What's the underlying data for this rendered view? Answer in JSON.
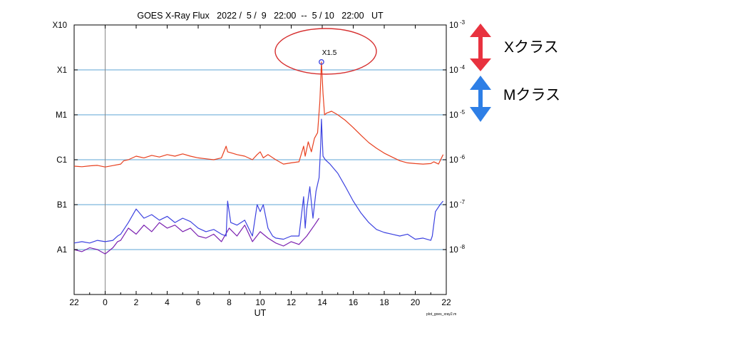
{
  "chart_data": {
    "type": "line",
    "title": "GOES X-Ray Flux   2022 /  5 /  9   22:00  --  5 / 10   22:00   UT",
    "xlabel": "UT",
    "x_ticks": [
      "22",
      "0",
      "2",
      "4",
      "6",
      "8",
      "10",
      "12",
      "14",
      "16",
      "18",
      "20",
      "22"
    ],
    "x_range_hours": [
      -2,
      22
    ],
    "y_scale": "log",
    "y_range": [
      1e-09,
      0.001
    ],
    "y_ticks_left": [
      "A1",
      "B1",
      "C1",
      "M1",
      "X1",
      "X10"
    ],
    "y_ticks_right": [
      "10",
      "10",
      "10",
      "10",
      "10",
      "10"
    ],
    "y_ticks_right_exp": [
      "-8",
      "-7",
      "-6",
      "-5",
      "-4",
      "-3"
    ],
    "grid": "horizontal at class levels",
    "series": [
      {
        "name": "",
        "color": "#e8401f",
        "x": [
          -2,
          -1.5,
          -1,
          -0.5,
          0,
          0.5,
          1,
          1.2,
          1.5,
          2,
          2.5,
          3,
          3.5,
          4,
          4.5,
          5,
          5.5,
          6,
          6.5,
          7,
          7.5,
          7.8,
          7.9,
          8.2,
          8.5,
          9,
          9.5,
          9.8,
          10,
          10.2,
          10.5,
          11,
          11.5,
          12,
          12.5,
          12.8,
          12.9,
          13.1,
          13.3,
          13.5,
          13.7,
          13.85,
          13.95,
          14.05,
          14.15,
          14.3,
          14.6,
          15,
          15.5,
          16,
          16.5,
          17,
          17.5,
          18,
          18.5,
          19,
          19.5,
          20,
          20.5,
          21,
          21.2,
          21.5,
          21.8
        ],
        "values": [
          7.2e-07,
          7e-07,
          7.3e-07,
          7.5e-07,
          6.9e-07,
          7.4e-07,
          8e-07,
          9.5e-07,
          1e-06,
          1.2e-06,
          1.1e-06,
          1.25e-06,
          1.15e-06,
          1.3e-06,
          1.2e-06,
          1.35e-06,
          1.2e-06,
          1.1e-06,
          1.05e-06,
          1e-06,
          1.1e-06,
          2e-06,
          1.5e-06,
          1.4e-06,
          1.3e-06,
          1.2e-06,
          1e-06,
          1.3e-06,
          1.5e-06,
          1.1e-06,
          1.3e-06,
          1e-06,
          8e-07,
          8.5e-07,
          9e-07,
          2e-06,
          1.2e-06,
          2.5e-06,
          1.5e-06,
          3e-06,
          4e-06,
          2e-05,
          0.00015,
          3e-05,
          1e-05,
          1.1e-05,
          1.2e-05,
          1e-05,
          7.5e-06,
          5.2e-06,
          3.5e-06,
          2.4e-06,
          1.8e-06,
          1.4e-06,
          1.15e-06,
          9.5e-07,
          8.5e-07,
          8.2e-07,
          8e-07,
          8.2e-07,
          9e-07,
          8e-07,
          1.3e-06
        ]
      },
      {
        "name": "",
        "color": "#3c42e0",
        "x": [
          -2,
          -1.5,
          -1,
          -0.5,
          0,
          0.5,
          0.8,
          1,
          1.5,
          2,
          2.5,
          3,
          3.5,
          4,
          4.5,
          5,
          5.5,
          6,
          6.5,
          7,
          7.5,
          7.8,
          7.9,
          8.1,
          8.5,
          9,
          9.5,
          9.8,
          10,
          10.2,
          10.5,
          10.8,
          11,
          11.5,
          12,
          12.5,
          12.8,
          12.9,
          13.0,
          13.2,
          13.4,
          13.6,
          13.8,
          13.9,
          13.95,
          14.05,
          14.2,
          14.5,
          15,
          15.5,
          16,
          16.5,
          17,
          17.5,
          18,
          18.5,
          19,
          19.5,
          20,
          20.5,
          21,
          21.1,
          21.3,
          21.6,
          21.8
        ],
        "values": [
          1.4e-08,
          1.5e-08,
          1.4e-08,
          1.6e-08,
          1.5e-08,
          1.6e-08,
          2e-08,
          2.2e-08,
          4e-08,
          8e-08,
          5e-08,
          6e-08,
          4.5e-08,
          5.5e-08,
          4e-08,
          5e-08,
          4.2e-08,
          3e-08,
          2.5e-08,
          2.8e-08,
          2.2e-08,
          2e-08,
          1.2e-07,
          4e-08,
          3.5e-08,
          4.5e-08,
          2e-08,
          1e-07,
          7e-08,
          1e-07,
          3e-08,
          2e-08,
          1.8e-08,
          1.7e-08,
          2e-08,
          2e-08,
          1.5e-07,
          3e-08,
          8e-08,
          2.5e-07,
          5e-08,
          2e-07,
          4e-07,
          2e-06,
          8e-06,
          1.2e-06,
          1e-06,
          8e-07,
          5e-07,
          2.5e-07,
          1.2e-07,
          6.5e-08,
          4e-08,
          2.8e-08,
          2.4e-08,
          2.2e-08,
          2e-08,
          2.2e-08,
          1.7e-08,
          1.8e-08,
          1.6e-08,
          2e-08,
          7e-08,
          1e-07,
          1.2e-07
        ]
      },
      {
        "name": "",
        "color": "#7a20b0",
        "x": [
          -2,
          -1.5,
          -1,
          -0.5,
          0,
          0.5,
          0.8,
          1,
          1.5,
          2,
          2.5,
          3,
          3.5,
          4,
          4.5,
          5,
          5.5,
          6,
          6.5,
          7,
          7.5,
          8,
          8.5,
          9,
          9.5,
          10,
          10.5,
          11,
          11.5,
          12,
          12.5,
          13,
          13.5,
          13.8
        ],
        "values": [
          1e-08,
          9e-09,
          1.1e-08,
          1e-08,
          8e-09,
          1.1e-08,
          1.5e-08,
          1.6e-08,
          3e-08,
          2.2e-08,
          3.5e-08,
          2.5e-08,
          4e-08,
          3e-08,
          3.5e-08,
          2.5e-08,
          3e-08,
          2e-08,
          1.8e-08,
          2.2e-08,
          1.5e-08,
          3e-08,
          2e-08,
          3.5e-08,
          1.5e-08,
          2.5e-08,
          1.8e-08,
          1.4e-08,
          1.2e-08,
          1.5e-08,
          1.3e-08,
          2e-08,
          3.5e-08,
          5e-08
        ]
      }
    ],
    "peak_label": "X1.5",
    "annotations": [
      {
        "label": "Xクラス",
        "color": "#e8323f"
      },
      {
        "label": "Mクラス",
        "color": "#2e7fe6"
      }
    ],
    "footnote": "plot_goes_xray2.m"
  }
}
